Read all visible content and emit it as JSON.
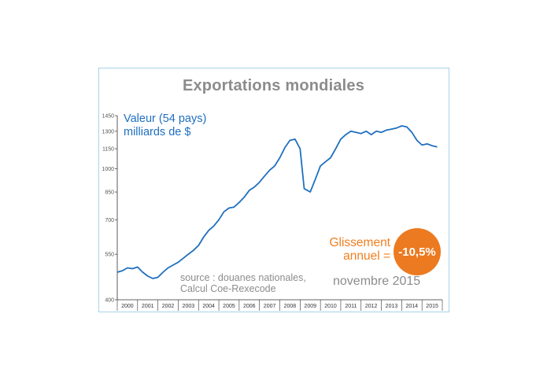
{
  "card": {
    "title": "Exportations mondiales",
    "series_label": [
      "Valeur (54 pays)",
      "milliards de $"
    ],
    "source": [
      "source : douanes nationales,",
      "Calcul Coe-Rexecode"
    ],
    "date": "novembre 2015",
    "slip_label": [
      "Glissement",
      "annuel ="
    ],
    "slip_value": "-10,5%"
  },
  "colors": {
    "line": "#1f6fbf",
    "badge": "#ec7a20",
    "slip_text": "#f07f1f",
    "frame": "#a9d3ea",
    "muted_text": "#8c8c8c"
  },
  "chart_data": {
    "type": "line",
    "title": "Exportations mondiales",
    "ylabel": "Valeur (54 pays) milliards de $",
    "y_scale": "log",
    "ylim": [
      400,
      1450
    ],
    "y_ticks": [
      400,
      550,
      700,
      850,
      1000,
      1150,
      1300,
      1450
    ],
    "x_ticks": [
      "2000",
      "2001",
      "2002",
      "2003",
      "2004",
      "2005",
      "2006",
      "2007",
      "2008",
      "2009",
      "2010",
      "2011",
      "2012",
      "2013",
      "2014",
      "2015"
    ],
    "xlim": [
      2000.0,
      2016.0
    ],
    "grid": false,
    "series": [
      {
        "x": [
          2000.0,
          2000.25,
          2000.5,
          2000.75,
          2001.0,
          2001.25,
          2001.5,
          2001.75,
          2002.0,
          2002.25,
          2002.5,
          2002.75,
          2003.0,
          2003.25,
          2003.5,
          2003.75,
          2004.0,
          2004.25,
          2004.5,
          2004.75,
          2005.0,
          2005.25,
          2005.5,
          2005.75,
          2006.0,
          2006.25,
          2006.5,
          2006.75,
          2007.0,
          2007.25,
          2007.5,
          2007.75,
          2008.0,
          2008.25,
          2008.5,
          2008.75,
          2009.0,
          2009.2,
          2009.5,
          2009.75,
          2010.0,
          2010.25,
          2010.5,
          2010.75,
          2011.0,
          2011.25,
          2011.5,
          2011.75,
          2012.0,
          2012.25,
          2012.5,
          2012.75,
          2013.0,
          2013.25,
          2013.5,
          2013.75,
          2014.0,
          2014.25,
          2014.5,
          2014.75,
          2015.0,
          2015.25,
          2015.5,
          2015.75
        ],
        "values": [
          485,
          490,
          500,
          497,
          503,
          485,
          472,
          464,
          468,
          485,
          500,
          510,
          520,
          535,
          550,
          565,
          585,
          620,
          650,
          670,
          700,
          740,
          760,
          765,
          790,
          820,
          860,
          880,
          910,
          950,
          990,
          1020,
          1080,
          1160,
          1220,
          1230,
          1150,
          870,
          850,
          930,
          1020,
          1050,
          1080,
          1150,
          1230,
          1270,
          1300,
          1290,
          1280,
          1300,
          1270,
          1300,
          1290,
          1310,
          1320,
          1330,
          1350,
          1340,
          1290,
          1220,
          1180,
          1190,
          1175,
          1165
        ]
      }
    ]
  }
}
